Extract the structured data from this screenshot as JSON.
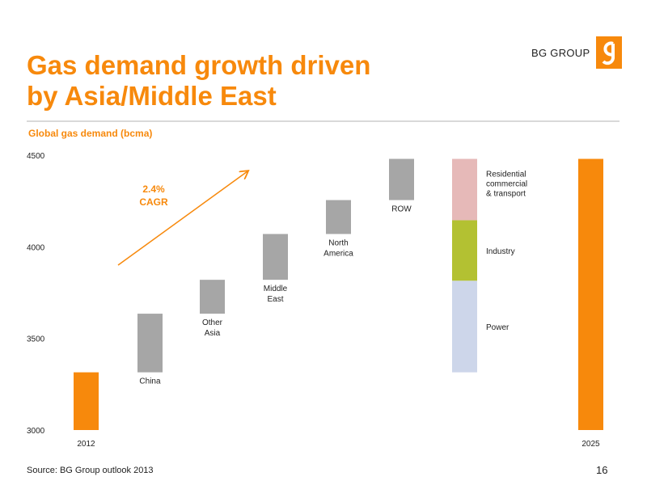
{
  "slide": {
    "title_line1": "Gas demand growth driven",
    "title_line2": "by Asia/Middle East",
    "brand": "BG GROUP",
    "source": "Source: BG Group outlook 2013",
    "page_number": "16"
  },
  "colors": {
    "accent": "#f7890c",
    "increment": "#a6a6a6",
    "residential": "#e6b9b8",
    "industry": "#b3c132",
    "power": "#cdd6ea"
  },
  "chart_data": {
    "type": "bar",
    "subtitle": "Global gas demand (bcma)",
    "ylim": [
      3000,
      4500
    ],
    "yticks": [
      "3000",
      "3500",
      "4000",
      "4500"
    ],
    "annotation": {
      "line1": "2.4%",
      "line2": "CAGR"
    },
    "bars": [
      {
        "label": "2012",
        "kind": "total",
        "start": 3000,
        "end": 3315
      },
      {
        "label": "China",
        "kind": "increment",
        "start": 3315,
        "end": 3635
      },
      {
        "label": "Other Asia",
        "lines": [
          "Other",
          "Asia"
        ],
        "kind": "increment",
        "start": 3635,
        "end": 3820
      },
      {
        "label": "Middle East",
        "lines": [
          "Middle",
          "East"
        ],
        "kind": "increment",
        "start": 3820,
        "end": 4070
      },
      {
        "label": "North America",
        "lines": [
          "North",
          "America"
        ],
        "kind": "increment",
        "start": 4070,
        "end": 4255
      },
      {
        "label": "ROW",
        "kind": "increment",
        "start": 4255,
        "end": 4480
      },
      {
        "label": "2025",
        "kind": "total",
        "start": 3000,
        "end": 4480
      }
    ],
    "breakdown": [
      {
        "name": "Power",
        "start": 3315,
        "end": 3815,
        "color_key": "power"
      },
      {
        "name": "Industry",
        "start": 3815,
        "end": 4145,
        "color_key": "industry"
      },
      {
        "name": "Residential commercial & transport",
        "lines": [
          "Residential",
          "commercial",
          "& transport"
        ],
        "start": 4145,
        "end": 4480,
        "color_key": "residential"
      }
    ]
  }
}
